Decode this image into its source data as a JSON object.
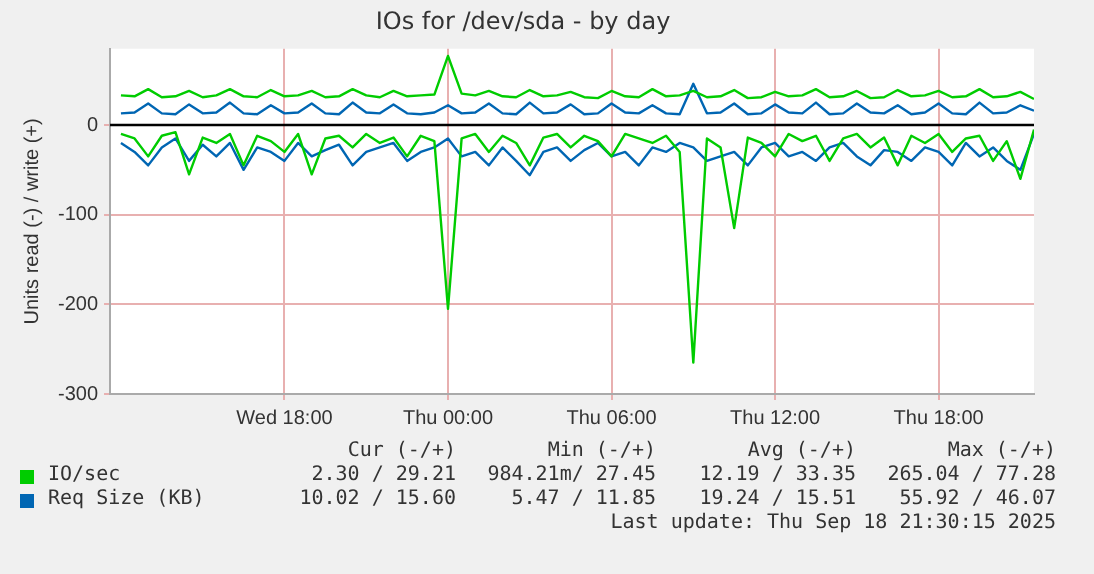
{
  "chart_data": {
    "type": "line",
    "title": "IOs for /dev/sda - by day",
    "ylabel": "Units read (-) / write (+)",
    "x": [
      "2025-09-17T12:00",
      "2025-09-17T12:30",
      "2025-09-17T13:00",
      "2025-09-17T13:30",
      "2025-09-17T14:00",
      "2025-09-17T14:30",
      "2025-09-17T15:00",
      "2025-09-17T15:30",
      "2025-09-17T16:00",
      "2025-09-17T16:30",
      "2025-09-17T17:00",
      "2025-09-17T17:30",
      "2025-09-17T18:00",
      "2025-09-17T18:30",
      "2025-09-17T19:00",
      "2025-09-17T19:30",
      "2025-09-17T20:00",
      "2025-09-17T20:30",
      "2025-09-17T21:00",
      "2025-09-17T21:30",
      "2025-09-17T22:00",
      "2025-09-17T22:30",
      "2025-09-17T23:00",
      "2025-09-17T23:30",
      "2025-09-18T00:00",
      "2025-09-18T00:30",
      "2025-09-18T01:00",
      "2025-09-18T01:30",
      "2025-09-18T02:00",
      "2025-09-18T02:30",
      "2025-09-18T03:00",
      "2025-09-18T03:30",
      "2025-09-18T04:00",
      "2025-09-18T04:30",
      "2025-09-18T05:00",
      "2025-09-18T05:30",
      "2025-09-18T06:00",
      "2025-09-18T06:30",
      "2025-09-18T07:00",
      "2025-09-18T07:30",
      "2025-09-18T08:00",
      "2025-09-18T08:30",
      "2025-09-18T09:00",
      "2025-09-18T09:30",
      "2025-09-18T10:00",
      "2025-09-18T10:30",
      "2025-09-18T11:00",
      "2025-09-18T11:30",
      "2025-09-18T12:00",
      "2025-09-18T12:30",
      "2025-09-18T13:00",
      "2025-09-18T13:30",
      "2025-09-18T14:00",
      "2025-09-18T14:30",
      "2025-09-18T15:00",
      "2025-09-18T15:30",
      "2025-09-18T16:00",
      "2025-09-18T16:30",
      "2025-09-18T17:00",
      "2025-09-18T17:30",
      "2025-09-18T18:00",
      "2025-09-18T18:30",
      "2025-09-18T19:00",
      "2025-09-18T19:30",
      "2025-09-18T20:00",
      "2025-09-18T20:30",
      "2025-09-18T21:00",
      "2025-09-18T21:30"
    ],
    "series": [
      {
        "name": "IO/sec",
        "color": "#00cc00",
        "values": [
          33,
          32,
          40,
          31,
          32,
          38,
          31,
          33,
          40,
          32,
          31,
          39,
          32,
          33,
          38,
          31,
          32,
          40,
          33,
          31,
          38,
          32,
          33,
          34,
          77,
          35,
          33,
          38,
          32,
          31,
          39,
          32,
          33,
          37,
          31,
          30,
          38,
          32,
          31,
          40,
          32,
          33,
          38,
          31,
          32,
          39,
          30,
          31,
          37,
          32,
          33,
          40,
          31,
          32,
          38,
          30,
          31,
          39,
          32,
          33,
          38,
          31,
          32,
          40,
          31,
          32,
          37,
          29
        ]
      },
      {
        "name": "Req Size (KB)",
        "color": "#0066b3",
        "values": [
          13,
          14,
          24,
          13,
          12,
          23,
          13,
          14,
          25,
          13,
          12,
          22,
          13,
          14,
          24,
          13,
          12,
          25,
          14,
          13,
          23,
          13,
          12,
          14,
          22,
          13,
          14,
          24,
          13,
          12,
          25,
          13,
          14,
          23,
          12,
          13,
          24,
          14,
          13,
          22,
          13,
          12,
          46,
          13,
          14,
          24,
          12,
          13,
          23,
          14,
          13,
          25,
          12,
          13,
          24,
          14,
          13,
          22,
          12,
          14,
          24,
          13,
          12,
          25,
          13,
          14,
          22,
          16
        ]
      },
      {
        "color": "#00cc00",
        "values": [
          -10,
          -15,
          -35,
          -12,
          -8,
          -55,
          -14,
          -20,
          -10,
          -45,
          -12,
          -18,
          -30,
          -10,
          -55,
          -15,
          -12,
          -25,
          -10,
          -20,
          -14,
          -35,
          -12,
          -18,
          -205,
          -15,
          -10,
          -30,
          -12,
          -20,
          -45,
          -14,
          -10,
          -25,
          -12,
          -18,
          -35,
          -10,
          -15,
          -20,
          -12,
          -30,
          -265,
          -15,
          -25,
          -115,
          -14,
          -20,
          -35,
          -10,
          -18,
          -12,
          -40,
          -15,
          -10,
          -25,
          -14,
          -45,
          -12,
          -20,
          -10,
          -30,
          -15,
          -12,
          -40,
          -18,
          -60,
          -5
        ]
      },
      {
        "color": "#0066b3",
        "values": [
          -20,
          -30,
          -45,
          -25,
          -15,
          -40,
          -22,
          -35,
          -20,
          -50,
          -25,
          -30,
          -40,
          -20,
          -35,
          -28,
          -22,
          -45,
          -30,
          -25,
          -20,
          -40,
          -30,
          -25,
          -15,
          -35,
          -30,
          -45,
          -25,
          -40,
          -56,
          -30,
          -25,
          -40,
          -28,
          -20,
          -35,
          -30,
          -45,
          -25,
          -30,
          -20,
          -25,
          -40,
          -35,
          -30,
          -45,
          -25,
          -20,
          -35,
          -30,
          -40,
          -25,
          -20,
          -35,
          -45,
          -28,
          -30,
          -40,
          -25,
          -30,
          -45,
          -20,
          -35,
          -25,
          -40,
          -50,
          -10
        ]
      }
    ],
    "xlim": [
      "2025-09-17T11:36",
      "2025-09-18T21:30"
    ],
    "xticks": [
      {
        "value": "2025-09-17T18:00",
        "label": "Wed 18:00"
      },
      {
        "value": "2025-09-18T00:00",
        "label": "Thu 00:00"
      },
      {
        "value": "2025-09-18T06:00",
        "label": "Thu 06:00"
      },
      {
        "value": "2025-09-18T12:00",
        "label": "Thu 12:00"
      },
      {
        "value": "2025-09-18T18:00",
        "label": "Thu 18:00"
      }
    ],
    "ylim": [
      -300,
      85
    ],
    "yticks": [
      -300,
      -200,
      -100,
      0
    ],
    "ref_lines": [
      {
        "axis": "y",
        "value": 0,
        "color": "#000000"
      }
    ],
    "grid": true,
    "legend": "bottom",
    "marker": "none",
    "line_style": "solid",
    "annotations": [
      "Cur (-/+)",
      "Min (-/+)",
      "Avg (-/+)",
      "Max (-/+)",
      "2.30 / 29.21",
      "984.21m/ 27.45",
      "12.19 / 33.35",
      "265.04 / 77.28",
      "10.02 / 15.60",
      "5.47 / 11.85",
      "19.24 / 15.51",
      "55.92 / 46.07",
      "Last update: Thu Sep 18 21:30:15 2025"
    ]
  }
}
